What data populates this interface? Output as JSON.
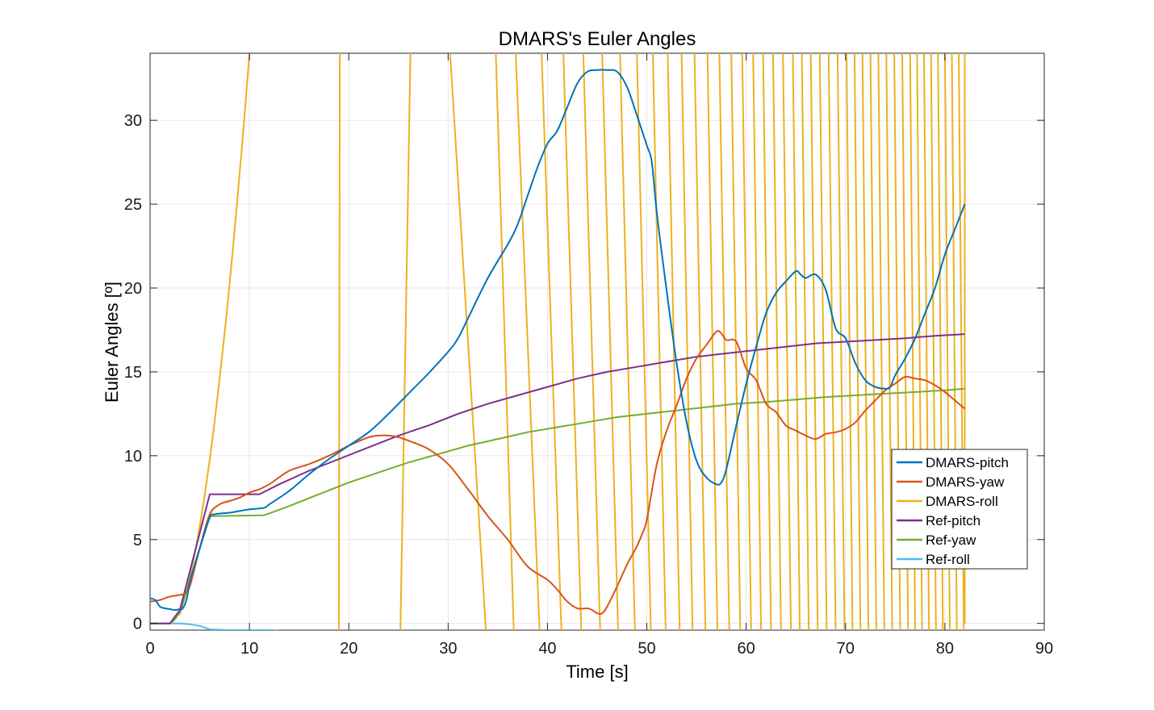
{
  "chart_data": {
    "type": "line",
    "title": "DMARS's Euler Angles",
    "xlabel": "Time [s]",
    "ylabel": "Euler Angles [º]",
    "xlim": [
      0,
      90
    ],
    "ylim": [
      -0.4,
      34
    ],
    "xticks": [
      0,
      10,
      20,
      30,
      40,
      50,
      60,
      70,
      80,
      90
    ],
    "yticks": [
      0,
      5,
      10,
      15,
      20,
      25,
      30
    ],
    "grid": true,
    "legend_position": "right",
    "series": [
      {
        "name": "DMARS-pitch",
        "color": "#0072BD",
        "x": [
          0,
          0.5,
          1,
          1.5,
          2,
          2.5,
          3,
          3.3,
          3.7,
          4,
          5,
          6,
          6.5,
          7,
          8,
          9,
          10,
          11.5,
          12,
          14,
          16,
          18,
          20,
          22,
          24,
          26,
          28,
          30,
          31,
          32,
          34,
          36,
          37,
          38,
          39,
          40,
          41,
          42,
          43,
          44,
          45,
          46,
          47,
          48,
          49,
          50,
          50.5,
          51,
          52,
          53,
          54,
          55,
          56,
          57,
          57.5,
          58,
          59,
          60,
          61,
          62,
          63,
          64,
          65,
          65.5,
          66,
          67,
          68,
          69,
          70,
          71,
          72,
          73,
          74,
          74.5,
          75,
          76,
          77,
          78,
          79,
          80,
          81,
          82
        ],
        "y": [
          1.5,
          1.4,
          1.0,
          0.9,
          0.85,
          0.8,
          0.85,
          0.9,
          1.5,
          2.5,
          4.5,
          6.3,
          6.5,
          6.55,
          6.6,
          6.7,
          6.8,
          6.9,
          7.1,
          7.9,
          8.9,
          9.8,
          10.6,
          11.4,
          12.5,
          13.7,
          14.9,
          16.2,
          17.0,
          18.2,
          20.6,
          22.6,
          23.8,
          25.5,
          27.2,
          28.6,
          29.4,
          30.8,
          32.2,
          32.9,
          33.0,
          33.0,
          32.9,
          32.0,
          30.3,
          28.5,
          27.5,
          24.5,
          19.8,
          15.5,
          12.0,
          9.7,
          8.7,
          8.3,
          8.4,
          9.2,
          11.8,
          14.3,
          16.5,
          18.5,
          19.7,
          20.4,
          21.0,
          20.8,
          20.6,
          20.8,
          19.9,
          17.6,
          17.0,
          15.5,
          14.5,
          14.1,
          14.0,
          14.1,
          14.8,
          15.8,
          17.0,
          18.5,
          20.0,
          22.0,
          23.5,
          25.0
        ]
      },
      {
        "name": "DMARS-yaw",
        "color": "#D95319",
        "x": [
          0,
          1,
          2,
          3,
          3.5,
          4,
          5,
          6,
          7,
          8,
          9,
          10,
          11,
          12,
          14,
          16,
          18,
          20,
          22,
          23,
          24,
          25,
          26,
          28,
          30,
          32,
          34,
          36,
          38,
          40,
          41,
          42,
          43,
          44,
          44.5,
          45,
          45.5,
          46,
          47,
          48,
          49,
          49.5,
          50,
          51,
          52,
          53,
          54,
          55,
          56,
          57,
          57.5,
          58,
          59,
          60,
          61,
          62,
          63,
          64,
          65,
          66,
          67,
          68,
          69,
          70,
          71,
          72,
          73,
          74,
          75,
          76,
          77,
          78,
          79,
          80,
          81,
          82
        ],
        "y": [
          1.3,
          1.4,
          1.6,
          1.7,
          1.8,
          2.2,
          4.5,
          6.5,
          7.1,
          7.3,
          7.5,
          7.8,
          8.0,
          8.3,
          9.1,
          9.5,
          10.0,
          10.6,
          11.1,
          11.2,
          11.2,
          11.1,
          10.9,
          10.4,
          9.5,
          8.0,
          6.4,
          5.0,
          3.4,
          2.6,
          2.0,
          1.3,
          0.9,
          0.9,
          0.8,
          0.6,
          0.6,
          1.0,
          2.2,
          3.5,
          4.6,
          5.3,
          6.2,
          9.5,
          11.5,
          13.0,
          14.6,
          15.8,
          16.6,
          17.4,
          17.3,
          16.9,
          16.8,
          15.2,
          14.5,
          13.1,
          12.6,
          11.8,
          11.5,
          11.2,
          11.0,
          11.3,
          11.4,
          11.6,
          12.0,
          12.7,
          13.3,
          13.9,
          14.3,
          14.7,
          14.6,
          14.5,
          14.2,
          13.8,
          13.3,
          12.8
        ]
      },
      {
        "name": "DMARS-roll",
        "color": "#EDB120",
        "x_zero_crossings": [
          2,
          19,
          25.2,
          33.8,
          36.6,
          39.2,
          41.4,
          43.4,
          45.3,
          47.1,
          48.8,
          50.4,
          51.9,
          53.3,
          54.6,
          55.9,
          57.1,
          58.3,
          59.4,
          60.5,
          61.5,
          62.5,
          63.5,
          64.5,
          65.4,
          66.3,
          67.2,
          68.1,
          69.0,
          69.9,
          70.7,
          71.5,
          72.3,
          73.1,
          73.9,
          74.7,
          75.5,
          76.3,
          77.0,
          77.7,
          78.4,
          79.1,
          79.8,
          80.5,
          81.2,
          81.9
        ],
        "x_top_crossings": [
          10,
          19.1,
          26.2,
          30.2,
          34.8,
          36.8,
          39.4,
          41.6,
          43.6,
          45.5,
          47.3,
          49.0,
          50.6,
          52.1,
          53.5,
          54.8,
          56.1,
          57.3,
          58.5,
          59.6,
          60.7,
          61.7,
          62.7,
          63.7,
          64.7,
          65.6,
          66.5,
          67.4,
          68.3,
          69.2,
          70.1,
          70.9,
          71.7,
          72.5,
          73.3,
          74.1,
          74.9,
          75.7,
          76.5,
          77.2,
          77.9,
          78.6,
          79.3,
          80.0,
          80.7,
          81.4,
          82.0
        ]
      },
      {
        "name": "Ref-pitch",
        "color": "#7E2F8E",
        "x": [
          0,
          2,
          3,
          6,
          11,
          13,
          16,
          19,
          22,
          25,
          28,
          31,
          34,
          37,
          40,
          43,
          46,
          49,
          52,
          55,
          58,
          61,
          64,
          67,
          70,
          73,
          76,
          79,
          82
        ],
        "y": [
          0,
          0,
          0.8,
          7.7,
          7.7,
          8.3,
          9.1,
          9.8,
          10.5,
          11.2,
          11.8,
          12.5,
          13.1,
          13.6,
          14.1,
          14.6,
          15.0,
          15.3,
          15.6,
          15.9,
          16.1,
          16.3,
          16.5,
          16.7,
          16.8,
          16.9,
          17.0,
          17.15,
          17.25
        ]
      },
      {
        "name": "Ref-yaw",
        "color": "#77AC30",
        "x": [
          0,
          2,
          3,
          6,
          11.5,
          14,
          17,
          20,
          23,
          26,
          29,
          32,
          35,
          38,
          41,
          44,
          47,
          50,
          53,
          56,
          59,
          62,
          65,
          68,
          71,
          74,
          77,
          80,
          82
        ],
        "y": [
          0,
          0,
          0.6,
          6.4,
          6.45,
          7.0,
          7.7,
          8.4,
          9.0,
          9.6,
          10.1,
          10.6,
          11.0,
          11.4,
          11.7,
          12.0,
          12.3,
          12.5,
          12.7,
          12.9,
          13.1,
          13.2,
          13.35,
          13.5,
          13.6,
          13.7,
          13.8,
          13.9,
          14.0
        ]
      },
      {
        "name": "Ref-roll",
        "color": "#4DBEEE",
        "x": [
          0,
          2,
          3,
          4,
          5,
          6,
          8,
          10,
          12,
          12.9
        ],
        "y": [
          0,
          0,
          0,
          -0.05,
          -0.15,
          -0.35,
          -0.4,
          -0.4,
          -0.4,
          -0.42
        ]
      }
    ]
  }
}
